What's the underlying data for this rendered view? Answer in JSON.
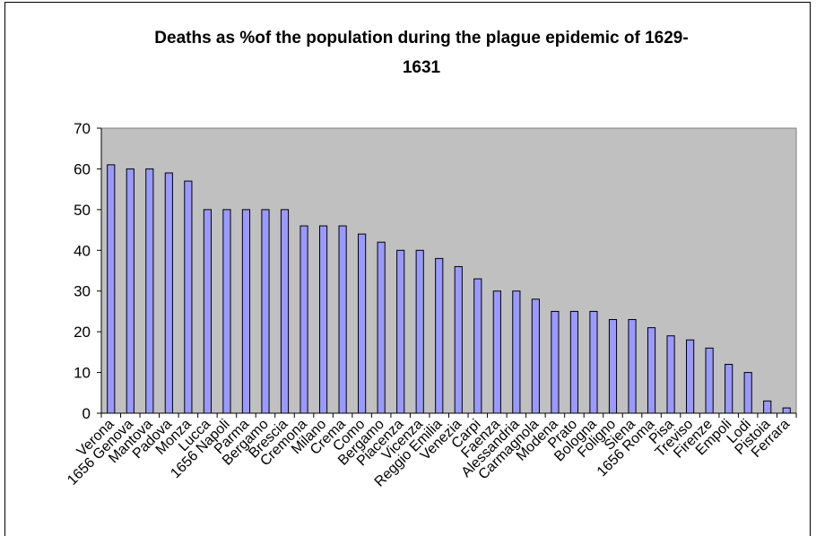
{
  "chart_data": {
    "type": "bar",
    "title": "Deaths as %of the population during the plague epidemic of 1629-1631",
    "title_lines": [
      "Deaths as %of the population during the plague epidemic of 1629-",
      "1631"
    ],
    "xlabel": "",
    "ylabel": "",
    "ylim": [
      0,
      70
    ],
    "yticks": [
      0,
      10,
      20,
      30,
      40,
      50,
      60,
      70
    ],
    "grid": false,
    "legend": "none",
    "categories": [
      "Verona",
      "1656 Genova",
      "Mantova",
      "Padova",
      "Monza",
      "Lucca",
      "1656 Napoli",
      "Parma",
      "Bergamo",
      "Brescia",
      "Cremona",
      "Milano",
      "Crema",
      "Como",
      "Bergamo",
      "Piacenza",
      "Vicenza",
      "Reggio Emilia",
      "Venezia",
      "Carpi",
      "Faenza",
      "Alessandria",
      "Carmagnola",
      "Modena",
      "Prato",
      "Bologna",
      "Foligno",
      "Siena",
      "1656 Roma",
      "Pisa",
      "Treviso",
      "Firenze",
      "Empoli",
      "Lodi",
      "Pistoia",
      "Ferrara"
    ],
    "values": [
      61,
      60,
      60,
      59,
      57,
      50,
      50,
      50,
      50,
      50,
      46,
      46,
      46,
      44,
      42,
      40,
      40,
      38,
      36,
      33,
      30,
      30,
      28,
      25,
      25,
      25,
      23,
      23,
      21,
      19,
      18,
      16,
      12,
      10,
      3,
      1.3
    ],
    "colors": {
      "plot_background": "#c0c0c0",
      "bar_fill": "#9999ff",
      "bar_stroke": "#000000",
      "frame": "#000000",
      "text": "#000000"
    }
  }
}
